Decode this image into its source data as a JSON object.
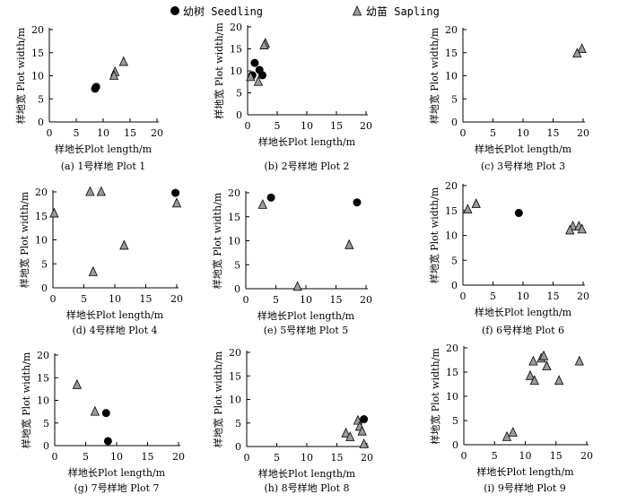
{
  "legend": {
    "seedling_label": "幼树 Seedling",
    "sapling_label": "幼苗 Sapling"
  },
  "colors": {
    "axis": "#000000",
    "seedling_fill": "#000000",
    "sapling_fill": "#9a9a9a"
  },
  "chart_data": [
    {
      "type": "scatter",
      "caption": "(a) 1号样地 Plot 1",
      "xlabel": "样地长Plot length/m",
      "ylabel": "样地宽 Plot width/m",
      "xlim": [
        0,
        20
      ],
      "ylim": [
        0,
        20
      ],
      "xticks": [
        0,
        5,
        10,
        15,
        20
      ],
      "yticks": [
        0,
        5,
        10,
        15,
        20
      ],
      "series": [
        {
          "name": "幼树 Seedling",
          "marker": "circle",
          "points": [
            [
              8.5,
              7.2
            ],
            [
              8.7,
              7.6
            ]
          ]
        },
        {
          "name": "幼苗 Sapling",
          "marker": "triangle",
          "points": [
            [
              13.8,
              13.0
            ],
            [
              12.2,
              10.8
            ],
            [
              12.0,
              10.0
            ]
          ]
        }
      ]
    },
    {
      "type": "scatter",
      "caption": "(b) 2号样地 Plot 2",
      "xlabel": "样地长Plot length/m",
      "ylabel": "样地宽 Plot width/m",
      "xlim": [
        0,
        20
      ],
      "ylim": [
        0,
        20
      ],
      "xticks": [
        0,
        5,
        10,
        15,
        20
      ],
      "yticks": [
        0,
        5,
        10,
        15,
        20
      ],
      "series": [
        {
          "name": "幼树 Seedling",
          "marker": "circle",
          "points": [
            [
              1.2,
              11.8
            ],
            [
              2.0,
              10.2
            ],
            [
              0.8,
              9.0
            ],
            [
              2.5,
              9.0
            ]
          ]
        },
        {
          "name": "幼苗 Sapling",
          "marker": "triangle",
          "points": [
            [
              3.0,
              16.2
            ],
            [
              2.8,
              15.8
            ],
            [
              0.5,
              8.6
            ],
            [
              1.8,
              7.5
            ]
          ]
        }
      ]
    },
    {
      "type": "scatter",
      "caption": "(c) 3号样地 Plot 3",
      "xlabel": "样地长Plot length/m",
      "ylabel": "样地宽 Plot width/m",
      "xlim": [
        0,
        20
      ],
      "ylim": [
        0,
        20
      ],
      "xticks": [
        0,
        5,
        10,
        15,
        20
      ],
      "yticks": [
        0,
        5,
        10,
        15,
        20
      ],
      "series": [
        {
          "name": "幼树 Seedling",
          "marker": "circle",
          "points": []
        },
        {
          "name": "幼苗 Sapling",
          "marker": "triangle",
          "points": [
            [
              19.8,
              15.8
            ],
            [
              19.0,
              14.8
            ]
          ]
        }
      ]
    },
    {
      "type": "scatter",
      "caption": "(d) 4号样地 Plot 4",
      "xlabel": "样地长Plot length/m",
      "ylabel": "样地宽 Plot width/m",
      "xlim": [
        0,
        20
      ],
      "ylim": [
        0,
        20
      ],
      "xticks": [
        0,
        5,
        10,
        15,
        20
      ],
      "yticks": [
        0,
        5,
        10,
        15,
        20
      ],
      "series": [
        {
          "name": "幼树 Seedling",
          "marker": "circle",
          "points": [
            [
              19.8,
              19.8
            ]
          ]
        },
        {
          "name": "幼苗 Sapling",
          "marker": "triangle",
          "points": [
            [
              6.0,
              20.0
            ],
            [
              7.8,
              20.0
            ],
            [
              0.2,
              15.5
            ],
            [
              20.0,
              17.6
            ],
            [
              11.5,
              8.8
            ],
            [
              6.5,
              3.3
            ]
          ]
        }
      ]
    },
    {
      "type": "scatter",
      "caption": "(e) 5号样地 Plot 5",
      "xlabel": "样地长Plot length/m",
      "ylabel": "样地宽 Plot width/m",
      "xlim": [
        0,
        20
      ],
      "ylim": [
        0,
        20
      ],
      "xticks": [
        0,
        5,
        10,
        15,
        20
      ],
      "yticks": [
        0,
        5,
        10,
        15,
        20
      ],
      "series": [
        {
          "name": "幼树 Seedling",
          "marker": "circle",
          "points": [
            [
              4.2,
              19.0
            ],
            [
              18.5,
              18.0
            ]
          ]
        },
        {
          "name": "幼苗 Sapling",
          "marker": "triangle",
          "points": [
            [
              2.8,
              17.5
            ],
            [
              17.2,
              9.1
            ],
            [
              8.6,
              0.4
            ]
          ]
        }
      ]
    },
    {
      "type": "scatter",
      "caption": "(f) 6号样地 Plot 6",
      "xlabel": "样地长Plot length/m",
      "ylabel": "样地宽 Plot width/m",
      "xlim": [
        0,
        20
      ],
      "ylim": [
        0,
        20
      ],
      "xticks": [
        0,
        5,
        10,
        15,
        20
      ],
      "yticks": [
        0,
        5,
        10,
        15,
        20
      ],
      "series": [
        {
          "name": "幼树 Seedling",
          "marker": "circle",
          "points": [
            [
              9.3,
              14.5
            ]
          ]
        },
        {
          "name": "幼苗 Sapling",
          "marker": "triangle",
          "points": [
            [
              0.8,
              15.2
            ],
            [
              2.2,
              16.3
            ],
            [
              18.3,
              11.8
            ],
            [
              17.8,
              11.0
            ],
            [
              19.3,
              11.8
            ],
            [
              19.8,
              11.2
            ]
          ]
        }
      ]
    },
    {
      "type": "scatter",
      "caption": "(g) 7号样地 Plot 7",
      "xlabel": "样地长Plot length/m",
      "ylabel": "样地宽 Plot width/m",
      "xlim": [
        0,
        20
      ],
      "ylim": [
        0,
        20
      ],
      "xticks": [
        0,
        5,
        10,
        15,
        20
      ],
      "yticks": [
        0,
        5,
        10,
        15,
        20
      ],
      "series": [
        {
          "name": "幼树 Seedling",
          "marker": "circle",
          "points": [
            [
              8.3,
              7.2
            ],
            [
              8.6,
              1.0
            ]
          ]
        },
        {
          "name": "幼苗 Sapling",
          "marker": "triangle",
          "points": [
            [
              3.6,
              13.4
            ],
            [
              6.5,
              7.5
            ]
          ]
        }
      ]
    },
    {
      "type": "scatter",
      "caption": "(h) 8号样地 Plot 8",
      "xlabel": "样地长Plot length/m",
      "ylabel": "样地宽 Plot width/m",
      "xlim": [
        0,
        20
      ],
      "ylim": [
        0,
        20
      ],
      "xticks": [
        0,
        5,
        10,
        15,
        20
      ],
      "yticks": [
        0,
        5,
        10,
        15,
        20
      ],
      "series": [
        {
          "name": "幼树 Seedling",
          "marker": "circle",
          "points": [
            [
              19.5,
              5.8
            ]
          ]
        },
        {
          "name": "幼苗 Sapling",
          "marker": "triangle",
          "points": [
            [
              18.5,
              5.5
            ],
            [
              18.8,
              4.2
            ],
            [
              19.2,
              3.2
            ],
            [
              16.5,
              2.8
            ],
            [
              17.2,
              2.0
            ],
            [
              19.5,
              0.5
            ]
          ]
        }
      ]
    },
    {
      "type": "scatter",
      "caption": "(i) 9号样地 Plot 9",
      "xlabel": "样地长Plot length/m",
      "ylabel": "样地宽 Plot width/m",
      "xlim": [
        0,
        20
      ],
      "ylim": [
        0,
        20
      ],
      "xticks": [
        0,
        5,
        10,
        15,
        20
      ],
      "yticks": [
        0,
        5,
        10,
        15,
        20
      ],
      "series": [
        {
          "name": "幼树 Seedling",
          "marker": "circle",
          "points": []
        },
        {
          "name": "幼苗 Sapling",
          "marker": "triangle",
          "points": [
            [
              12.6,
              17.8
            ],
            [
              13.0,
              18.3
            ],
            [
              11.3,
              17.2
            ],
            [
              13.5,
              16.2
            ],
            [
              10.8,
              14.2
            ],
            [
              11.5,
              13.2
            ],
            [
              15.5,
              13.2
            ],
            [
              18.8,
              17.2
            ],
            [
              8.0,
              2.5
            ],
            [
              7.0,
              1.6
            ]
          ]
        }
      ]
    }
  ]
}
